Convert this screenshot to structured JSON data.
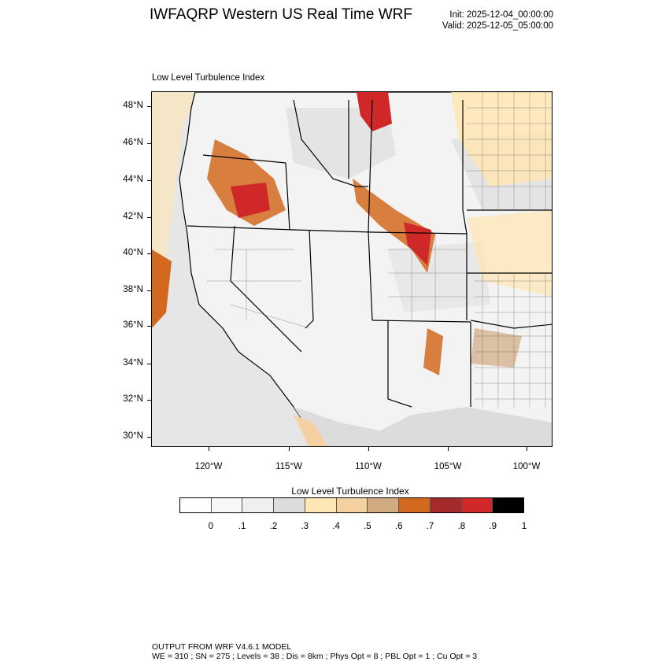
{
  "title": "IWFAQRP Western US Real Time WRF",
  "init": "Init: 2025-12-04_00:00:00",
  "valid": "Valid: 2025-12-05_05:00:00",
  "panel_label": "Low Level Turbulence Index",
  "lat_labels": [
    "48°N",
    "46°N",
    "44°N",
    "42°N",
    "40°N",
    "38°N",
    "36°N",
    "34°N",
    "32°N",
    "30°N"
  ],
  "lon_labels": [
    "120°W",
    "115°W",
    "110°W",
    "105°W",
    "100°W"
  ],
  "colorbar": {
    "title": "Low Level Turbulence Index",
    "colors": [
      "#ffffff",
      "#f8f8f8",
      "#efefef",
      "#dddddd",
      "#ffe6b4",
      "#f5d0a0",
      "#d2aa82",
      "#d2691e",
      "#a52a2a",
      "#d02828",
      "#000000"
    ],
    "ticks": [
      "0",
      ".1",
      ".2",
      ".3",
      ".4",
      ".5",
      ".6",
      ".7",
      ".8",
      ".9",
      "1"
    ]
  },
  "footer": {
    "line1": "OUTPUT FROM WRF V4.6.1 MODEL",
    "line2": "WE = 310 ; SN = 275 ; Levels = 38 ; Dis = 8km ; Phys Opt = 8 ; PBL Opt = 1 ; Cu Opt = 3"
  }
}
